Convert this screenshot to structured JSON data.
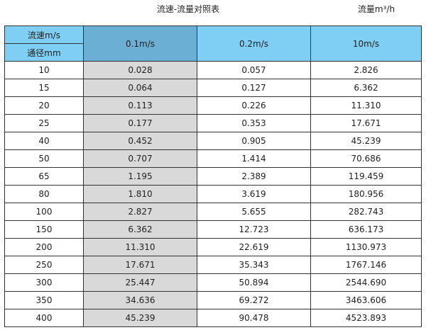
{
  "title": "流速-流量对照表",
  "unit_label": "流量m³/h",
  "table": {
    "corner_top": "流速m/s",
    "corner_bottom": "通径mm",
    "columns": [
      "0.1m/s",
      "0.2m/s",
      "10m/s"
    ],
    "rows": [
      [
        "10",
        "0.028",
        "0.057",
        "2.826"
      ],
      [
        "15",
        "0.064",
        "0.127",
        "6.362"
      ],
      [
        "20",
        "0.113",
        "0.226",
        "11.310"
      ],
      [
        "25",
        "0.177",
        "0.353",
        "17.671"
      ],
      [
        "40",
        "0.452",
        "0.905",
        "45.239"
      ],
      [
        "50",
        "0.707",
        "1.414",
        "70.686"
      ],
      [
        "65",
        "1.195",
        "2.389",
        "119.459"
      ],
      [
        "80",
        "1.810",
        "3.619",
        "180.956"
      ],
      [
        "100",
        "2.827",
        "5.655",
        "282.743"
      ],
      [
        "150",
        "6.362",
        "12.723",
        "636.173"
      ],
      [
        "200",
        "11.310",
        "22.619",
        "1130.973"
      ],
      [
        "250",
        "17.671",
        "35.343",
        "1767.146"
      ],
      [
        "300",
        "25.447",
        "50.894",
        "2544.690"
      ],
      [
        "350",
        "34.636",
        "69.272",
        "3463.606"
      ],
      [
        "400",
        "45.239",
        "90.478",
        "4523.893"
      ]
    ]
  },
  "colors": {
    "header": "#7fcef4",
    "header_highlight": "#6cafd4",
    "highlight_column": "#d9d9d9"
  }
}
